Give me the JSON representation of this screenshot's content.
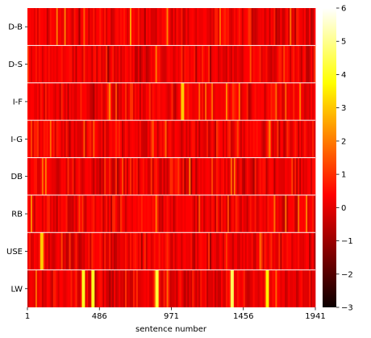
{
  "chart_data": {
    "type": "heatmap",
    "title": "",
    "xlabel": "sentence number",
    "ylabel": "",
    "rows": [
      "D-B",
      "D-S",
      "I-F",
      "I-G",
      "DB",
      "RB",
      "USE",
      "LW"
    ],
    "x_range": [
      1,
      1941
    ],
    "x_ticks": [
      "1",
      "486",
      "971",
      "1456",
      "1941"
    ],
    "x_tick_values": [
      1,
      486,
      971,
      1456,
      1941
    ],
    "colorbar": {
      "colormap": "hot",
      "range": [
        -3,
        6
      ],
      "ticks": [
        "−3",
        "−2",
        "−1",
        "0",
        "1",
        "2",
        "3",
        "4",
        "5",
        "6"
      ],
      "tick_values": [
        -3,
        -2,
        -1,
        0,
        1,
        2,
        3,
        4,
        5,
        6
      ]
    },
    "value_distribution": {
      "typical_range": [
        -1,
        1
      ],
      "mean": 0.0,
      "max_spikes": [
        {
          "row": "LW",
          "x": 380,
          "value": 4.0
        },
        {
          "row": "LW",
          "x": 440,
          "value": 4.0
        },
        {
          "row": "LW",
          "x": 870,
          "value": 4.2
        },
        {
          "row": "LW",
          "x": 1380,
          "value": 4.5
        },
        {
          "row": "LW",
          "x": 1620,
          "value": 3.5
        },
        {
          "row": "USE",
          "x": 95,
          "value": 3.0
        },
        {
          "row": "I-F",
          "x": 1050,
          "value": 3.0
        }
      ]
    },
    "row_separators": true
  }
}
